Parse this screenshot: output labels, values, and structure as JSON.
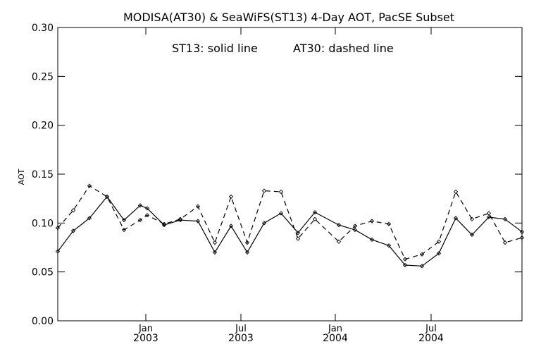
{
  "chart_data": {
    "type": "line",
    "title": "MODISA(AT30) & SeaWiFS(ST13) 4-Day AOT, PacSE Subset",
    "annotation_left": "ST13: solid line",
    "annotation_right": "AT30: dashed line",
    "ylabel": "AOT",
    "xlabel": "",
    "ylim": [
      0.0,
      0.3
    ],
    "yticks": [
      "0.00",
      "0.05",
      "0.10",
      "0.15",
      "0.20",
      "0.25",
      "0.30"
    ],
    "yticks_values": [
      0.0,
      0.05,
      0.1,
      0.15,
      0.2,
      0.25,
      0.3
    ],
    "xticks": [
      {
        "month": "Jan",
        "year": "2003"
      },
      {
        "month": "Jul",
        "year": "2003"
      },
      {
        "month": "Jan",
        "year": "2004"
      },
      {
        "month": "Jul",
        "year": "2004"
      }
    ],
    "grid": false,
    "series": [
      {
        "name": "ST13",
        "style": "solid",
        "values": [
          0.071,
          0.092,
          0.105,
          0.127,
          0.103,
          0.118,
          0.115,
          0.098,
          0.103,
          0.102,
          0.07,
          0.097,
          0.07,
          0.1,
          0.11,
          0.09,
          0.111,
          0.098,
          0.093,
          0.083,
          0.077,
          0.057,
          0.056,
          0.069,
          0.105,
          0.088,
          0.106,
          0.104,
          0.091
        ]
      },
      {
        "name": "AT30",
        "style": "dashed",
        "values": [
          0.095,
          0.113,
          0.138,
          0.127,
          0.093,
          0.103,
          0.108,
          0.099,
          0.104,
          0.117,
          0.08,
          0.127,
          0.08,
          0.133,
          0.132,
          0.084,
          0.104,
          0.081,
          0.097,
          0.102,
          0.099,
          0.063,
          0.068,
          0.081,
          0.132,
          0.104,
          0.11,
          0.08,
          0.085
        ]
      }
    ]
  }
}
